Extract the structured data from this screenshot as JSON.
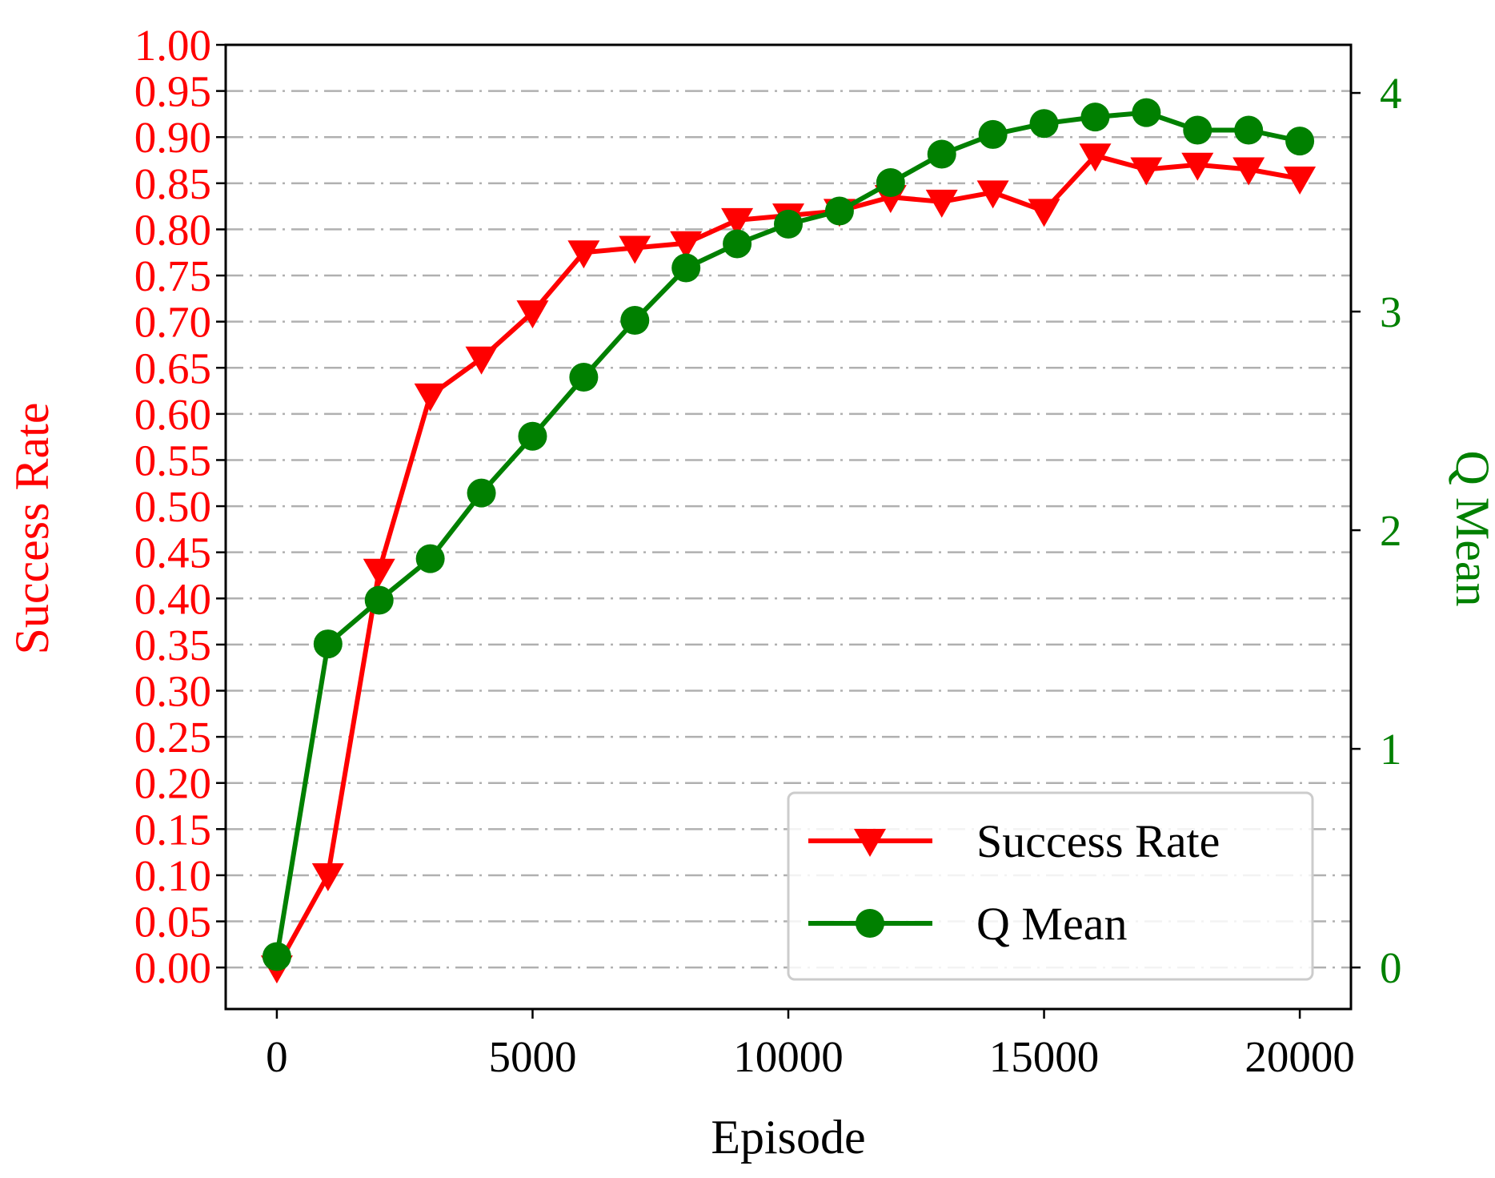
{
  "chart_data": {
    "type": "line",
    "xlabel": "Episode",
    "ylabel_left": "Success Rate",
    "ylabel_right": "Q Mean",
    "xlim": [
      -1000,
      21000
    ],
    "ylim_left": [
      -0.045,
      1.0
    ],
    "ylim_right": [
      -0.19,
      4.22
    ],
    "x_ticks": [
      0,
      5000,
      10000,
      15000,
      20000
    ],
    "left_ticks": [
      "0.00",
      "0.05",
      "0.10",
      "0.15",
      "0.20",
      "0.25",
      "0.30",
      "0.35",
      "0.40",
      "0.45",
      "0.50",
      "0.55",
      "0.60",
      "0.65",
      "0.70",
      "0.75",
      "0.80",
      "0.85",
      "0.90",
      "0.95",
      "1.00"
    ],
    "right_ticks": [
      0,
      1,
      2,
      3,
      4
    ],
    "grid": "horizontal dash-dot at left-axis ticks",
    "legend_position": "lower-right",
    "x": [
      0,
      1000,
      2000,
      3000,
      4000,
      5000,
      6000,
      7000,
      8000,
      9000,
      10000,
      11000,
      12000,
      13000,
      14000,
      15000,
      16000,
      17000,
      18000,
      19000,
      20000
    ],
    "series": [
      {
        "name": "Success Rate",
        "axis": "left",
        "color": "#ff0000",
        "marker": "triangle-down",
        "values": [
          0.0,
          0.1,
          0.43,
          0.62,
          0.66,
          0.71,
          0.775,
          0.78,
          0.785,
          0.81,
          0.815,
          0.82,
          0.835,
          0.83,
          0.84,
          0.82,
          0.88,
          0.865,
          0.87,
          0.865,
          0.855
        ]
      },
      {
        "name": "Q Mean",
        "axis": "right",
        "color": "#008000",
        "marker": "circle",
        "values": [
          0.05,
          1.48,
          1.68,
          1.87,
          2.17,
          2.43,
          2.7,
          2.96,
          3.2,
          3.31,
          3.4,
          3.46,
          3.59,
          3.72,
          3.81,
          3.86,
          3.89,
          3.91,
          3.83,
          3.83,
          3.78
        ]
      }
    ]
  }
}
